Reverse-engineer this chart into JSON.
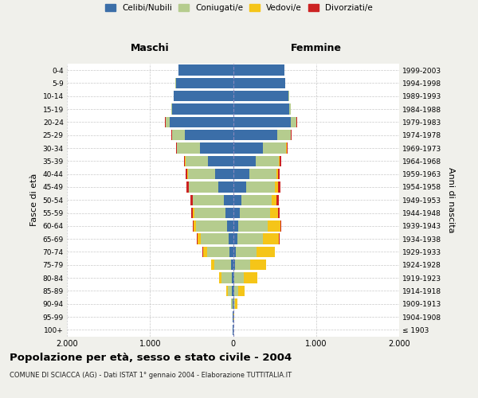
{
  "age_groups": [
    "100+",
    "95-99",
    "90-94",
    "85-89",
    "80-84",
    "75-79",
    "70-74",
    "65-69",
    "60-64",
    "55-59",
    "50-54",
    "45-49",
    "40-44",
    "35-39",
    "30-34",
    "25-29",
    "20-24",
    "15-19",
    "10-14",
    "5-9",
    "0-4"
  ],
  "birth_years": [
    "≤ 1903",
    "1904-1908",
    "1909-1913",
    "1914-1918",
    "1919-1923",
    "1924-1928",
    "1929-1933",
    "1934-1938",
    "1939-1943",
    "1944-1948",
    "1949-1953",
    "1954-1958",
    "1959-1963",
    "1964-1968",
    "1969-1973",
    "1974-1978",
    "1979-1983",
    "1984-1988",
    "1989-1993",
    "1994-1998",
    "1999-2003"
  ],
  "male": {
    "celibe": [
      2,
      3,
      5,
      10,
      18,
      28,
      45,
      55,
      75,
      95,
      115,
      175,
      220,
      300,
      400,
      580,
      760,
      730,
      710,
      690,
      660
    ],
    "coniugato": [
      1,
      4,
      18,
      55,
      125,
      195,
      270,
      330,
      370,
      375,
      365,
      355,
      325,
      275,
      280,
      155,
      55,
      12,
      4,
      1,
      0
    ],
    "vedovo": [
      0,
      1,
      5,
      12,
      28,
      38,
      48,
      38,
      28,
      14,
      9,
      7,
      4,
      2,
      1,
      1,
      0,
      0,
      0,
      0,
      0
    ],
    "divorziato": [
      0,
      0,
      0,
      0,
      0,
      4,
      7,
      9,
      13,
      22,
      27,
      22,
      18,
      13,
      7,
      4,
      2,
      1,
      0,
      0,
      0
    ]
  },
  "female": {
    "nubile": [
      2,
      3,
      7,
      11,
      18,
      28,
      37,
      55,
      65,
      85,
      105,
      155,
      195,
      270,
      360,
      530,
      700,
      680,
      670,
      630,
      620
    ],
    "coniugata": [
      1,
      4,
      18,
      52,
      115,
      175,
      250,
      300,
      350,
      360,
      360,
      350,
      330,
      280,
      280,
      165,
      65,
      18,
      7,
      2,
      1
    ],
    "vedova": [
      2,
      8,
      28,
      75,
      155,
      195,
      215,
      195,
      155,
      95,
      55,
      37,
      18,
      9,
      4,
      2,
      1,
      0,
      0,
      0,
      0
    ],
    "divorziata": [
      0,
      0,
      0,
      0,
      0,
      2,
      4,
      7,
      11,
      22,
      32,
      27,
      22,
      18,
      11,
      7,
      4,
      2,
      0,
      0,
      0
    ]
  },
  "colors": {
    "celibe": "#3b6ea8",
    "coniugato": "#b5cc8e",
    "vedovo": "#f5c518",
    "divorziato": "#cc2222"
  },
  "xlim": 2000,
  "title": "Popolazione per età, sesso e stato civile - 2004",
  "subtitle": "COMUNE DI SCIACCA (AG) - Dati ISTAT 1° gennaio 2004 - Elaborazione TUTTITALIA.IT",
  "ylabel_left": "Fasce di età",
  "ylabel_right": "Anni di nascita",
  "xlabel_left": "Maschi",
  "xlabel_right": "Femmine",
  "bg_color": "#f0f0eb",
  "plot_bg": "#ffffff",
  "legend_labels": [
    "Celibi/Nubili",
    "Coniugati/e",
    "Vedovi/e",
    "Divorziati/e"
  ]
}
